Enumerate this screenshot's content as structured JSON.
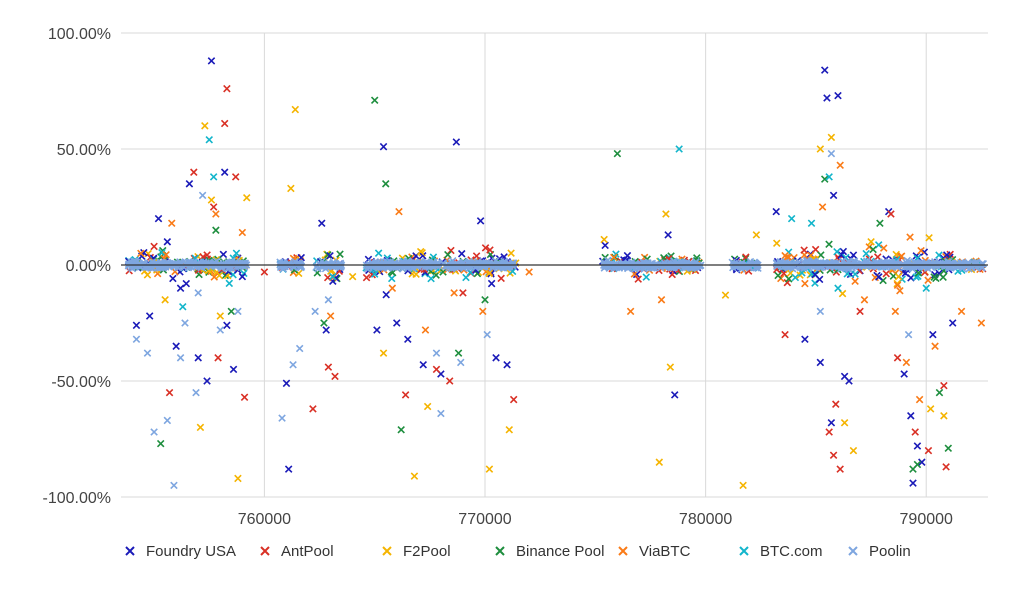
{
  "chart_data": {
    "type": "scatter",
    "title": "",
    "xlabel": "",
    "ylabel": "",
    "xlim": [
      753500,
      792800
    ],
    "ylim": [
      -100,
      100
    ],
    "x_ticks": [
      {
        "value": 760000,
        "label": "760000"
      },
      {
        "value": 770000,
        "label": "770000"
      },
      {
        "value": 780000,
        "label": "780000"
      },
      {
        "value": 790000,
        "label": "790000"
      }
    ],
    "y_ticks": [
      {
        "value": 100,
        "label": "100.00%"
      },
      {
        "value": 50,
        "label": "50.00%"
      },
      {
        "value": 0,
        "label": "0.00%"
      },
      {
        "value": -50,
        "label": "-50.00%"
      },
      {
        "value": -100,
        "label": "-100.00%"
      }
    ],
    "grid": true,
    "legend_position": "bottom",
    "marker": "x",
    "series": [
      {
        "name": "Foundry USA",
        "color": "#1a1ab8",
        "points": [
          [
            754200,
            -26
          ],
          [
            754800,
            -22
          ],
          [
            755200,
            20
          ],
          [
            755600,
            10
          ],
          [
            756000,
            -35
          ],
          [
            756600,
            35
          ],
          [
            757000,
            -40
          ],
          [
            757400,
            -50
          ],
          [
            757600,
            88
          ],
          [
            758200,
            40
          ],
          [
            758300,
            -26
          ],
          [
            758600,
            -45
          ],
          [
            761000,
            -51
          ],
          [
            761100,
            -88
          ],
          [
            762600,
            18
          ],
          [
            762800,
            -28
          ],
          [
            765100,
            -28
          ],
          [
            765400,
            51
          ],
          [
            766000,
            -25
          ],
          [
            766500,
            -32
          ],
          [
            767200,
            -43
          ],
          [
            768000,
            -47
          ],
          [
            768700,
            53
          ],
          [
            769800,
            19
          ],
          [
            770500,
            -40
          ],
          [
            771000,
            -43
          ],
          [
            778600,
            -56
          ],
          [
            778300,
            13
          ],
          [
            783200,
            23
          ],
          [
            784500,
            -32
          ],
          [
            785400,
            84
          ],
          [
            785500,
            72
          ],
          [
            785800,
            30
          ],
          [
            786000,
            73
          ],
          [
            786500,
            -50
          ],
          [
            786300,
            -48
          ],
          [
            785700,
            -68
          ],
          [
            788300,
            23
          ],
          [
            789000,
            -47
          ],
          [
            789300,
            -65
          ],
          [
            789400,
            -94
          ],
          [
            789600,
            -78
          ],
          [
            789800,
            -85
          ],
          [
            790300,
            -30
          ],
          [
            791200,
            -25
          ],
          [
            785200,
            -42
          ],
          [
            754600,
            0
          ],
          [
            756200,
            -10
          ],
          [
            759000,
            -5
          ],
          [
            770300,
            -8
          ]
        ]
      },
      {
        "name": "AntPool",
        "color": "#d93025",
        "points": [
          [
            755700,
            -55
          ],
          [
            756800,
            40
          ],
          [
            757700,
            25
          ],
          [
            757900,
            -40
          ],
          [
            758200,
            61
          ],
          [
            758300,
            76
          ],
          [
            758700,
            38
          ],
          [
            759100,
            -57
          ],
          [
            762200,
            -62
          ],
          [
            762900,
            -44
          ],
          [
            763200,
            -48
          ],
          [
            766400,
            -56
          ],
          [
            767800,
            -45
          ],
          [
            768400,
            -50
          ],
          [
            771300,
            -58
          ],
          [
            783600,
            -30
          ],
          [
            785600,
            -72
          ],
          [
            785800,
            -82
          ],
          [
            786100,
            -88
          ],
          [
            785900,
            -60
          ],
          [
            788400,
            22
          ],
          [
            788700,
            -40
          ],
          [
            790100,
            -80
          ],
          [
            790800,
            -52
          ],
          [
            790900,
            -87
          ],
          [
            789500,
            -72
          ],
          [
            755000,
            8
          ],
          [
            760000,
            -3
          ],
          [
            769000,
            -12
          ],
          [
            787000,
            -20
          ]
        ]
      },
      {
        "name": "F2Pool",
        "color": "#f5b400",
        "points": [
          [
            757300,
            60
          ],
          [
            757600,
            28
          ],
          [
            757100,
            -70
          ],
          [
            758000,
            -22
          ],
          [
            758800,
            -92
          ],
          [
            759200,
            29
          ],
          [
            761200,
            33
          ],
          [
            761400,
            67
          ],
          [
            765400,
            -38
          ],
          [
            766800,
            -91
          ],
          [
            767400,
            -61
          ],
          [
            770200,
            -88
          ],
          [
            771100,
            -71
          ],
          [
            775400,
            11
          ],
          [
            778200,
            22
          ],
          [
            777900,
            -85
          ],
          [
            778400,
            -44
          ],
          [
            780900,
            -13
          ],
          [
            781700,
            -95
          ],
          [
            782300,
            13
          ],
          [
            785200,
            50
          ],
          [
            785700,
            55
          ],
          [
            786300,
            -68
          ],
          [
            786700,
            -80
          ],
          [
            790200,
            -62
          ],
          [
            790800,
            -65
          ],
          [
            787500,
            10
          ],
          [
            755500,
            -15
          ],
          [
            764000,
            -5
          ]
        ]
      },
      {
        "name": "Binance Pool",
        "color": "#1e8e3e",
        "points": [
          [
            755300,
            -77
          ],
          [
            757800,
            15
          ],
          [
            762700,
            -25
          ],
          [
            765000,
            71
          ],
          [
            765500,
            35
          ],
          [
            766200,
            -71
          ],
          [
            768800,
            -38
          ],
          [
            776000,
            48
          ],
          [
            785400,
            37
          ],
          [
            786000,
            -2
          ],
          [
            787900,
            18
          ],
          [
            789400,
            -88
          ],
          [
            789600,
            -86
          ],
          [
            790600,
            -55
          ],
          [
            791000,
            -79
          ],
          [
            758500,
            -20
          ],
          [
            770000,
            -15
          ]
        ]
      },
      {
        "name": "ViaBTC",
        "color": "#fa7b17",
        "points": [
          [
            755800,
            18
          ],
          [
            757800,
            22
          ],
          [
            759000,
            14
          ],
          [
            763000,
            -22
          ],
          [
            766100,
            23
          ],
          [
            767300,
            -28
          ],
          [
            768600,
            -12
          ],
          [
            769900,
            -20
          ],
          [
            776600,
            -20
          ],
          [
            778000,
            -15
          ],
          [
            784500,
            -8
          ],
          [
            785300,
            25
          ],
          [
            786100,
            43
          ],
          [
            787200,
            -15
          ],
          [
            788600,
            -20
          ],
          [
            789100,
            -42
          ],
          [
            789700,
            -58
          ],
          [
            790400,
            -35
          ],
          [
            791600,
            -20
          ],
          [
            792500,
            -25
          ],
          [
            754400,
            5
          ],
          [
            765800,
            -10
          ],
          [
            772000,
            -3
          ]
        ]
      },
      {
        "name": "BTC.com",
        "color": "#12b5cb",
        "points": [
          [
            757500,
            54
          ],
          [
            757700,
            38
          ],
          [
            763100,
            -5
          ],
          [
            778800,
            50
          ],
          [
            783900,
            20
          ],
          [
            784800,
            18
          ],
          [
            785600,
            38
          ],
          [
            786000,
            -10
          ],
          [
            790000,
            -10
          ],
          [
            756300,
            -18
          ]
        ]
      },
      {
        "name": "Poolin",
        "color": "#7ea6e0",
        "points": [
          [
            754200,
            -32
          ],
          [
            754700,
            -38
          ],
          [
            755000,
            -72
          ],
          [
            755600,
            -67
          ],
          [
            756200,
            -40
          ],
          [
            756400,
            -25
          ],
          [
            756900,
            -55
          ],
          [
            757000,
            -12
          ],
          [
            757200,
            30
          ],
          [
            758000,
            -28
          ],
          [
            758800,
            -20
          ],
          [
            760800,
            -66
          ],
          [
            761300,
            -43
          ],
          [
            761600,
            -36
          ],
          [
            762300,
            -20
          ],
          [
            762900,
            -15
          ],
          [
            755900,
            -95
          ],
          [
            767800,
            -38
          ],
          [
            768000,
            -64
          ],
          [
            768900,
            -42
          ],
          [
            770100,
            -30
          ],
          [
            785200,
            -20
          ],
          [
            785700,
            48
          ],
          [
            789200,
            -30
          ]
        ]
      }
    ],
    "dense_bands": [
      {
        "x_range": [
          753800,
          759200
        ],
        "y_spread": 8
      },
      {
        "x_range": [
          760700,
          761700
        ],
        "y_spread": 5
      },
      {
        "x_range": [
          762300,
          763500
        ],
        "y_spread": 10
      },
      {
        "x_range": [
          764600,
          771400
        ],
        "y_spread": 8
      },
      {
        "x_range": [
          775300,
          779800
        ],
        "y_spread": 6
      },
      {
        "x_range": [
          781200,
          782400
        ],
        "y_spread": 5
      },
      {
        "x_range": [
          783200,
          791200
        ],
        "y_spread": 9
      },
      {
        "x_range": [
          791400,
          792600
        ],
        "y_spread": 3
      }
    ]
  }
}
